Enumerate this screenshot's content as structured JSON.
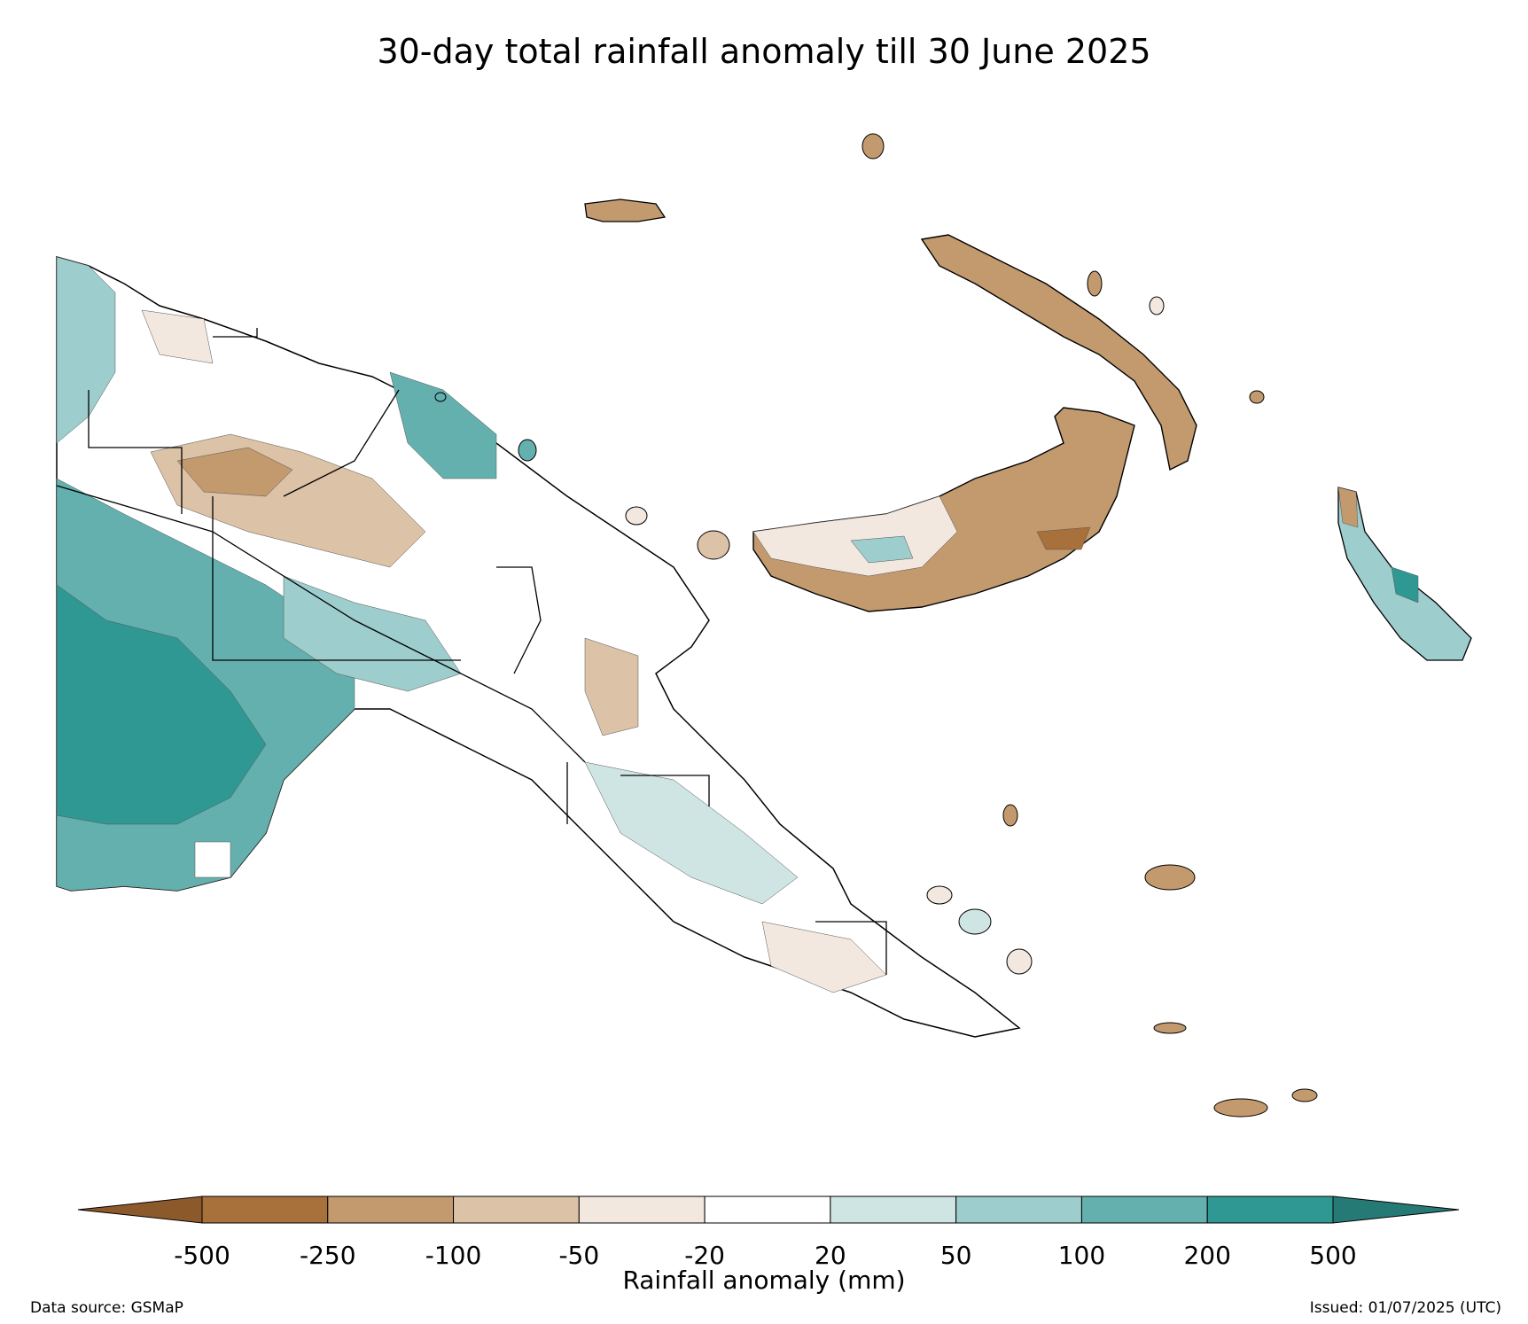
{
  "title": "30-day total rainfall anomaly till 30 June 2025",
  "legend": {
    "title": "Rainfall anomaly (mm)",
    "tick_labels": [
      "-500",
      "-250",
      "-100",
      "-50",
      "-20",
      "20",
      "50",
      "100",
      "200",
      "500"
    ],
    "colors": {
      "below_min": "#8c5a2a",
      "bins": [
        "#a8703a",
        "#c29a6e",
        "#dcc2a6",
        "#f2e8df",
        "#ffffff",
        "#cfe5e4",
        "#9dcdcc",
        "#64b0ae",
        "#2f9893"
      ],
      "above_max": "#267a76"
    }
  },
  "footer": {
    "source": "Data source: GSMaP",
    "issued": "Issued: 01/07/2025 (UTC)"
  }
}
